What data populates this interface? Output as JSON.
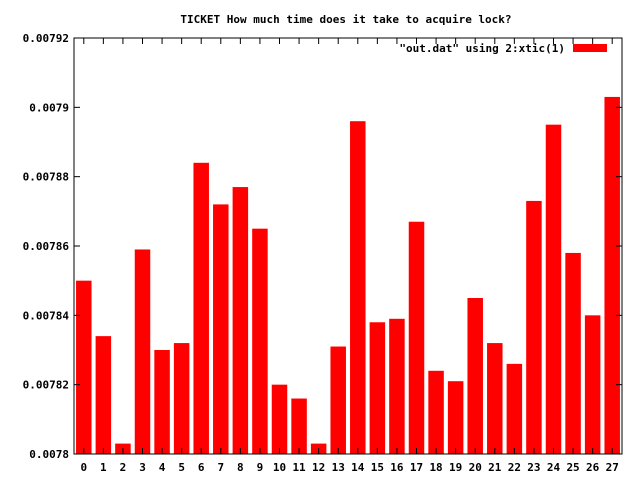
{
  "chart_data": {
    "type": "bar",
    "title": "TICKET How much time does it take to acquire lock?",
    "xlabel": "",
    "ylabel": "",
    "categories": [
      "0",
      "1",
      "2",
      "3",
      "4",
      "5",
      "6",
      "7",
      "8",
      "9",
      "10",
      "11",
      "12",
      "13",
      "14",
      "15",
      "16",
      "17",
      "18",
      "19",
      "20",
      "21",
      "22",
      "23",
      "24",
      "25",
      "26",
      "27"
    ],
    "series": [
      {
        "name": "\"out.dat\" using 2:xtic(1)",
        "color": "#ff0000",
        "values": [
          0.00785,
          0.007834,
          0.007803,
          0.007859,
          0.00783,
          0.007832,
          0.007884,
          0.007872,
          0.007877,
          0.007865,
          0.00782,
          0.007816,
          0.007803,
          0.007831,
          0.007896,
          0.007838,
          0.007839,
          0.007867,
          0.007824,
          0.007821,
          0.007845,
          0.007832,
          0.007826,
          0.007873,
          0.007895,
          0.007858,
          0.00784,
          0.007903
        ]
      }
    ],
    "ylim": [
      0.0078,
      0.00792
    ],
    "yticks": [
      "0.0078",
      "0.00782",
      "0.00784",
      "0.00786",
      "0.00788",
      "0.0079",
      "0.00792"
    ],
    "grid": false,
    "legend_position": "top-right"
  }
}
